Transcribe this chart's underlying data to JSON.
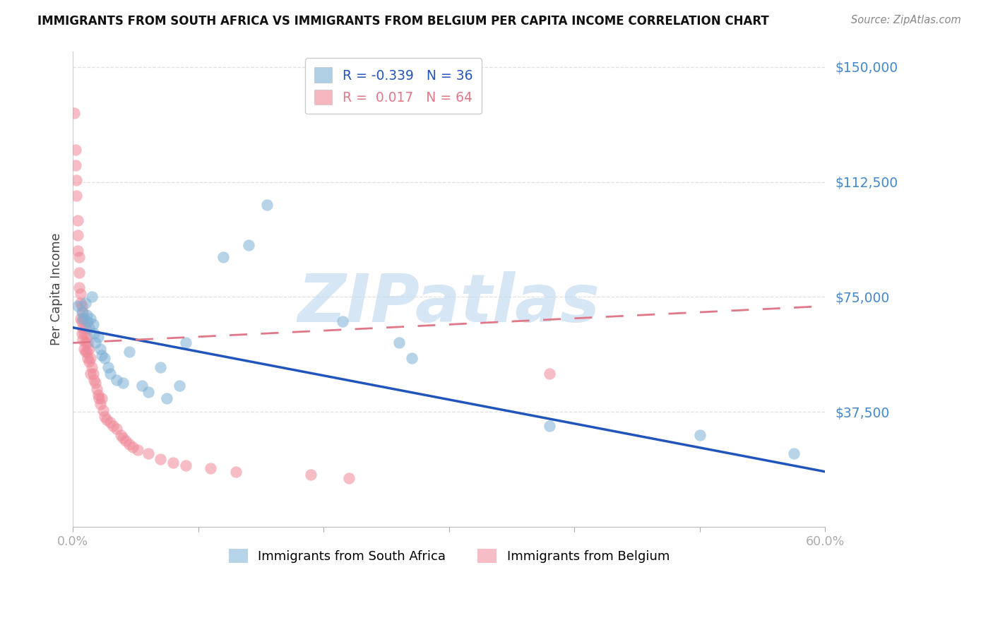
{
  "title": "IMMIGRANTS FROM SOUTH AFRICA VS IMMIGRANTS FROM BELGIUM PER CAPITA INCOME CORRELATION CHART",
  "source": "Source: ZipAtlas.com",
  "ylabel": "Per Capita Income",
  "xlim": [
    0.0,
    0.6
  ],
  "ylim": [
    0,
    155000
  ],
  "yticks": [
    0,
    37500,
    75000,
    112500,
    150000
  ],
  "ytick_labels": [
    "",
    "$37,500",
    "$75,000",
    "$112,500",
    "$150,000"
  ],
  "xticks": [
    0.0,
    0.1,
    0.2,
    0.3,
    0.4,
    0.5,
    0.6
  ],
  "xtick_labels": [
    "0.0%",
    "",
    "",
    "",
    "",
    "",
    "60.0%"
  ],
  "blue_color": "#7BAFD4",
  "pink_color": "#F08898",
  "blue_line_color": "#2255BB",
  "pink_line_color": "#E07888",
  "blue_R": -0.339,
  "blue_N": 36,
  "pink_R": 0.017,
  "pink_N": 64,
  "watermark_text": "ZIPatlas",
  "watermark_color": "#C5DCF0",
  "background": "#FFFFFF",
  "grid_color": "#DDDDDD",
  "ytick_color": "#4488CC",
  "xtick_color": "#555555",
  "title_color": "#111111",
  "source_color": "#888888",
  "ylabel_color": "#444444",
  "blue_line_x": [
    0.0,
    0.6
  ],
  "blue_line_y": [
    65000,
    18000
  ],
  "pink_line_x": [
    0.0,
    0.6
  ],
  "pink_line_y": [
    60000,
    72000
  ],
  "blue_scatter_x": [
    0.004,
    0.007,
    0.008,
    0.01,
    0.011,
    0.012,
    0.013,
    0.014,
    0.015,
    0.016,
    0.017,
    0.018,
    0.02,
    0.022,
    0.023,
    0.025,
    0.028,
    0.03,
    0.035,
    0.04,
    0.045,
    0.055,
    0.06,
    0.07,
    0.075,
    0.085,
    0.09,
    0.12,
    0.14,
    0.155,
    0.215,
    0.26,
    0.27,
    0.38,
    0.5,
    0.575
  ],
  "blue_scatter_y": [
    72000,
    70000,
    68000,
    73000,
    69000,
    67000,
    65000,
    68000,
    75000,
    66000,
    63000,
    60000,
    62000,
    58000,
    56000,
    55000,
    52000,
    50000,
    48000,
    47000,
    57000,
    46000,
    44000,
    52000,
    42000,
    46000,
    60000,
    88000,
    92000,
    105000,
    67000,
    60000,
    55000,
    33000,
    30000,
    24000
  ],
  "pink_scatter_x": [
    0.001,
    0.002,
    0.002,
    0.003,
    0.003,
    0.004,
    0.004,
    0.004,
    0.005,
    0.005,
    0.005,
    0.006,
    0.006,
    0.006,
    0.007,
    0.007,
    0.007,
    0.008,
    0.008,
    0.008,
    0.009,
    0.009,
    0.009,
    0.01,
    0.01,
    0.01,
    0.011,
    0.011,
    0.012,
    0.012,
    0.013,
    0.013,
    0.014,
    0.014,
    0.015,
    0.016,
    0.017,
    0.018,
    0.019,
    0.02,
    0.021,
    0.022,
    0.023,
    0.024,
    0.025,
    0.027,
    0.03,
    0.032,
    0.035,
    0.038,
    0.04,
    0.042,
    0.045,
    0.048,
    0.052,
    0.06,
    0.07,
    0.08,
    0.09,
    0.11,
    0.13,
    0.19,
    0.22,
    0.38
  ],
  "pink_scatter_y": [
    135000,
    123000,
    118000,
    113000,
    108000,
    100000,
    95000,
    90000,
    88000,
    83000,
    78000,
    76000,
    73000,
    68000,
    72000,
    67000,
    63000,
    70000,
    65000,
    61000,
    68000,
    63000,
    58000,
    65000,
    60000,
    57000,
    62000,
    57000,
    60000,
    55000,
    58000,
    54000,
    55000,
    50000,
    52000,
    50000,
    48000,
    47000,
    45000,
    43000,
    42000,
    40000,
    42000,
    38000,
    36000,
    35000,
    34000,
    33000,
    32000,
    30000,
    29000,
    28000,
    27000,
    26000,
    25000,
    24000,
    22000,
    21000,
    20000,
    19000,
    18000,
    17000,
    16000,
    50000
  ]
}
